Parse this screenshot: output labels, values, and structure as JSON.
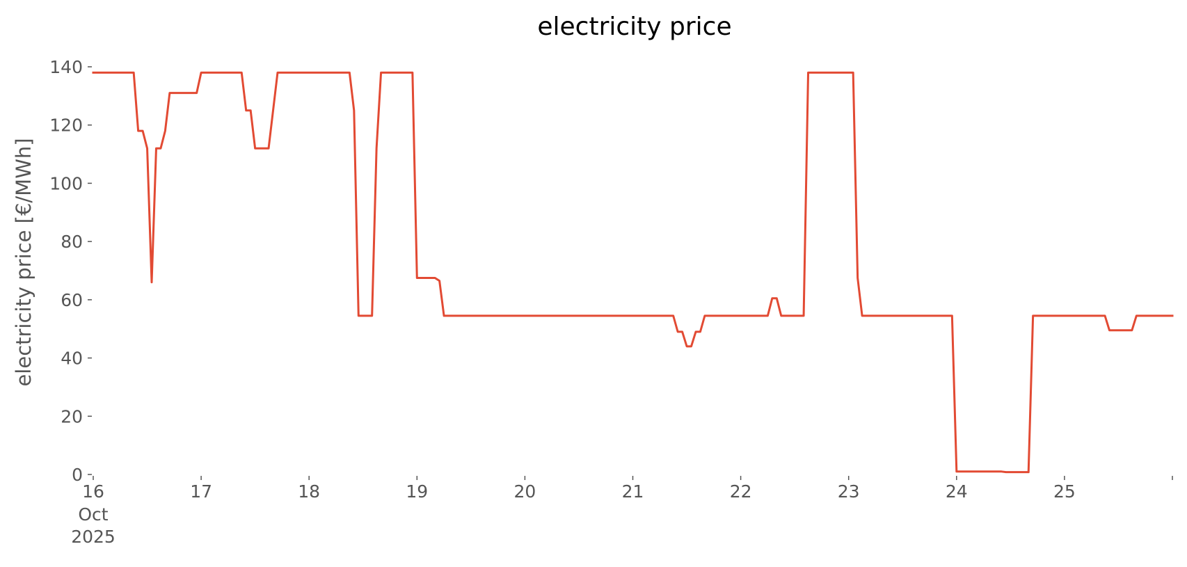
{
  "chart_data": {
    "type": "line",
    "title": "electricity price",
    "xlabel": "",
    "ylabel": "electricity price [€/MWh]",
    "x_axis": {
      "type": "date",
      "range": [
        "2025-10-16T00:00",
        "2025-10-26T00:00"
      ],
      "ticks": [
        {
          "date": "2025-10-16",
          "label": "16",
          "sublabels": [
            "Oct",
            "2025"
          ]
        },
        {
          "date": "2025-10-17",
          "label": "17",
          "sublabels": []
        },
        {
          "date": "2025-10-18",
          "label": "18",
          "sublabels": []
        },
        {
          "date": "2025-10-19",
          "label": "19",
          "sublabels": []
        },
        {
          "date": "2025-10-20",
          "label": "20",
          "sublabels": []
        },
        {
          "date": "2025-10-21",
          "label": "21",
          "sublabels": []
        },
        {
          "date": "2025-10-22",
          "label": "22",
          "sublabels": []
        },
        {
          "date": "2025-10-23",
          "label": "23",
          "sublabels": []
        },
        {
          "date": "2025-10-24",
          "label": "24",
          "sublabels": []
        },
        {
          "date": "2025-10-25",
          "label": "25",
          "sublabels": []
        },
        {
          "date": "2025-10-26",
          "label": "",
          "sublabels": []
        }
      ]
    },
    "ylim": [
      0,
      140
    ],
    "yticks": [
      0,
      20,
      40,
      60,
      80,
      100,
      120,
      140
    ],
    "grid": false,
    "legend": "none",
    "series": [
      {
        "color": "#e24a33",
        "points": [
          [
            "2025-10-16T00:00",
            138
          ],
          [
            "2025-10-16T09:00",
            138
          ],
          [
            "2025-10-16T10:00",
            118
          ],
          [
            "2025-10-16T11:00",
            118
          ],
          [
            "2025-10-16T12:00",
            112
          ],
          [
            "2025-10-16T13:00",
            66
          ],
          [
            "2025-10-16T14:00",
            112
          ],
          [
            "2025-10-16T15:00",
            112
          ],
          [
            "2025-10-16T16:00",
            118
          ],
          [
            "2025-10-16T17:00",
            131
          ],
          [
            "2025-10-16T23:00",
            131
          ],
          [
            "2025-10-17T00:00",
            138
          ],
          [
            "2025-10-17T09:00",
            138
          ],
          [
            "2025-10-17T10:00",
            125
          ],
          [
            "2025-10-17T11:00",
            125
          ],
          [
            "2025-10-17T12:00",
            112
          ],
          [
            "2025-10-17T15:00",
            112
          ],
          [
            "2025-10-17T17:00",
            138
          ],
          [
            "2025-10-18T09:00",
            138
          ],
          [
            "2025-10-18T10:00",
            125
          ],
          [
            "2025-10-18T11:00",
            54.5
          ],
          [
            "2025-10-18T14:00",
            54.5
          ],
          [
            "2025-10-18T15:00",
            112
          ],
          [
            "2025-10-18T16:00",
            138
          ],
          [
            "2025-10-18T23:00",
            138
          ],
          [
            "2025-10-19T00:00",
            67.5
          ],
          [
            "2025-10-19T04:00",
            67.5
          ],
          [
            "2025-10-19T05:00",
            66.5
          ],
          [
            "2025-10-19T06:00",
            54.5
          ],
          [
            "2025-10-21T09:00",
            54.5
          ],
          [
            "2025-10-21T10:00",
            49
          ],
          [
            "2025-10-21T11:00",
            49
          ],
          [
            "2025-10-21T12:00",
            44
          ],
          [
            "2025-10-21T13:00",
            44
          ],
          [
            "2025-10-21T14:00",
            49
          ],
          [
            "2025-10-21T15:00",
            49
          ],
          [
            "2025-10-21T16:00",
            54.5
          ],
          [
            "2025-10-22T06:00",
            54.5
          ],
          [
            "2025-10-22T07:00",
            60.5
          ],
          [
            "2025-10-22T08:00",
            60.5
          ],
          [
            "2025-10-22T09:00",
            54.5
          ],
          [
            "2025-10-22T14:00",
            54.5
          ],
          [
            "2025-10-22T15:00",
            138
          ],
          [
            "2025-10-23T01:00",
            138
          ],
          [
            "2025-10-23T02:00",
            67.5
          ],
          [
            "2025-10-23T03:00",
            54.5
          ],
          [
            "2025-10-23T23:00",
            54.5
          ],
          [
            "2025-10-24T00:00",
            1
          ],
          [
            "2025-10-24T10:00",
            1
          ],
          [
            "2025-10-24T11:00",
            0.8
          ],
          [
            "2025-10-24T16:00",
            0.8
          ],
          [
            "2025-10-24T17:00",
            54.5
          ],
          [
            "2025-10-25T09:00",
            54.5
          ],
          [
            "2025-10-25T10:00",
            49.5
          ],
          [
            "2025-10-25T15:00",
            49.5
          ],
          [
            "2025-10-25T16:00",
            54.5
          ],
          [
            "2025-10-26T00:00",
            54.5
          ]
        ]
      }
    ]
  }
}
